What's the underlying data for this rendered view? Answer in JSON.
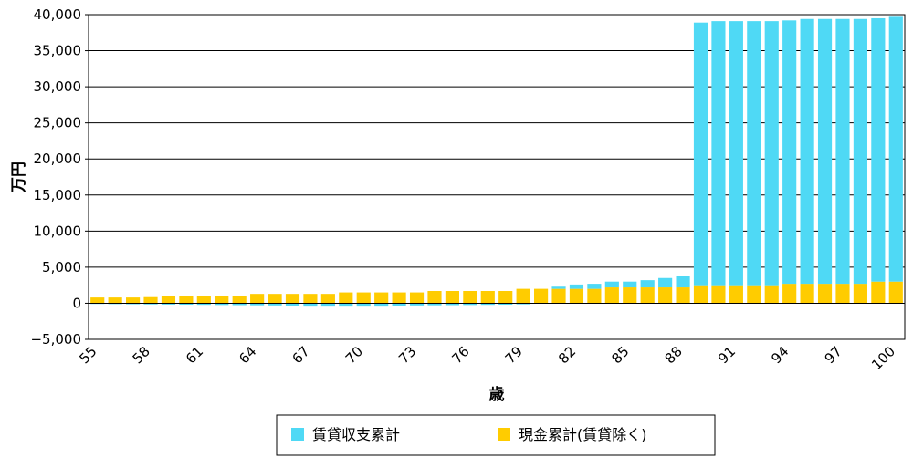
{
  "chart_data": {
    "type": "bar",
    "stacked": true,
    "xlabel": "歳",
    "ylabel": "万円",
    "ylim": [
      -5000,
      40000
    ],
    "ytick_step": 5000,
    "ytick_labels": [
      "−5,000",
      "0",
      "5,000",
      "10,000",
      "15,000",
      "20,000",
      "25,000",
      "30,000",
      "35,000",
      "40,000"
    ],
    "grid": true,
    "legend_position": "bottom",
    "categories": [
      "55",
      "56",
      "57",
      "58",
      "59",
      "60",
      "61",
      "62",
      "63",
      "64",
      "65",
      "66",
      "67",
      "68",
      "69",
      "70",
      "71",
      "72",
      "73",
      "74",
      "75",
      "76",
      "77",
      "78",
      "79",
      "80",
      "81",
      "82",
      "83",
      "84",
      "85",
      "86",
      "87",
      "88",
      "89",
      "90",
      "91",
      "92",
      "93",
      "94",
      "95",
      "96",
      "97",
      "98",
      "99",
      "100"
    ],
    "x_tick_labels": [
      "55",
      "58",
      "61",
      "64",
      "67",
      "70",
      "73",
      "76",
      "79",
      "82",
      "85",
      "88",
      "91",
      "94",
      "97",
      "100"
    ],
    "series": [
      {
        "name": "現金累計(賃貸除く)",
        "color": "#ffcc00",
        "values": [
          800,
          800,
          800,
          850,
          1000,
          1000,
          1050,
          1050,
          1050,
          1300,
          1300,
          1300,
          1300,
          1300,
          1500,
          1500,
          1500,
          1500,
          1500,
          1700,
          1700,
          1700,
          1700,
          1700,
          2000,
          2000,
          2000,
          2000,
          2000,
          2200,
          2200,
          2200,
          2200,
          2200,
          2500,
          2500,
          2500,
          2500,
          2500,
          2700,
          2700,
          2700,
          2700,
          2700,
          3000,
          3000
        ]
      },
      {
        "name": "賃貸収支累計",
        "color": "#4fd9f5",
        "values": [
          -100,
          -120,
          -140,
          -160,
          -180,
          -200,
          -220,
          -240,
          -260,
          -280,
          -300,
          -320,
          -340,
          -340,
          -340,
          -340,
          -340,
          -320,
          -300,
          -280,
          -260,
          -240,
          -220,
          -200,
          -150,
          0,
          300,
          600,
          700,
          800,
          800,
          1000,
          1300,
          1600,
          36400,
          36600,
          36600,
          36600,
          36600,
          36500,
          36700,
          36700,
          36700,
          36700,
          36500,
          36700
        ]
      }
    ]
  }
}
